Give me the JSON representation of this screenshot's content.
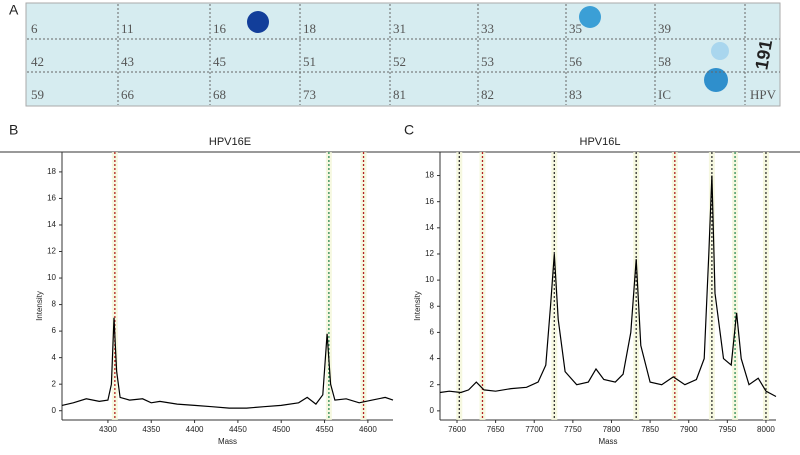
{
  "panels": [
    "A",
    "B",
    "C"
  ],
  "strip": {
    "rows": [
      [
        "6",
        "11",
        "16",
        "18",
        "31",
        "33",
        "35",
        "39"
      ],
      [
        "42",
        "43",
        "45",
        "51",
        "52",
        "53",
        "56",
        "58"
      ],
      [
        "59",
        "66",
        "68",
        "73",
        "81",
        "82",
        "83",
        "IC"
      ]
    ],
    "side": [
      "191",
      "HPV"
    ]
  },
  "chart_data": [
    {
      "type": "line",
      "title": "HPV16E",
      "x_label": "Mass",
      "y_label": "Intensity",
      "color": "#000000",
      "x": [
        4247,
        4260,
        4275,
        4290,
        4300,
        4304,
        4307,
        4310,
        4314,
        4325,
        4340,
        4350,
        4360,
        4380,
        4400,
        4420,
        4440,
        4460,
        4480,
        4500,
        4520,
        4530,
        4540,
        4548,
        4553,
        4557,
        4562,
        4575,
        4590,
        4605,
        4620,
        4629
      ],
      "values": [
        0.4,
        0.6,
        0.9,
        0.7,
        0.8,
        2,
        7,
        3,
        1,
        0.8,
        0.9,
        0.6,
        0.7,
        0.5,
        0.4,
        0.3,
        0.2,
        0.2,
        0.3,
        0.4,
        0.6,
        1,
        0.5,
        1.2,
        5.8,
        2,
        0.8,
        0.9,
        0.6,
        0.8,
        1,
        0.8
      ],
      "markers": [
        {
          "x": 4308,
          "color": "#b22222"
        },
        {
          "x": 4555,
          "color": "#2e8b57"
        },
        {
          "x": 4595,
          "color": "#b22222"
        }
      ],
      "xlim": [
        4247,
        4629
      ],
      "ylim": [
        -0.7,
        19.5
      ],
      "xticks": [
        4300,
        4350,
        4400,
        4450,
        4500,
        4550,
        4600
      ],
      "yticks": [
        0,
        2,
        4,
        6,
        8,
        10,
        12,
        14,
        16,
        18
      ]
    },
    {
      "type": "line",
      "title": "HPV16L",
      "x_label": "Mass",
      "y_label": "Intensity",
      "color": "#000000",
      "x": [
        7578,
        7590,
        7605,
        7615,
        7625,
        7635,
        7650,
        7670,
        7690,
        7705,
        7715,
        7721,
        7726,
        7731,
        7740,
        7755,
        7770,
        7780,
        7790,
        7805,
        7815,
        7825,
        7832,
        7838,
        7850,
        7865,
        7880,
        7895,
        7910,
        7920,
        7926,
        7930,
        7934,
        7945,
        7955,
        7962,
        7968,
        7978,
        7990,
        8000,
        8013
      ],
      "values": [
        1.4,
        1.5,
        1.4,
        1.6,
        2.2,
        1.6,
        1.5,
        1.7,
        1.8,
        2.2,
        3.5,
        8,
        12,
        7,
        3,
        2,
        2.2,
        3.2,
        2.4,
        2.2,
        2.8,
        6,
        11.6,
        5,
        2.2,
        2,
        2.6,
        2,
        2.4,
        4,
        12,
        18,
        9,
        4,
        3.5,
        7.5,
        4,
        2,
        2.5,
        1.5,
        1.1
      ],
      "markers": [
        {
          "x": 7603,
          "color": "#333333"
        },
        {
          "x": 7633,
          "color": "#b22222"
        },
        {
          "x": 7726,
          "color": "#333333"
        },
        {
          "x": 7832,
          "color": "#333333"
        },
        {
          "x": 7882,
          "color": "#b22222"
        },
        {
          "x": 7930,
          "color": "#333333"
        },
        {
          "x": 7960,
          "color": "#2e8b57"
        },
        {
          "x": 8000,
          "color": "#333333"
        }
      ],
      "xlim": [
        7578,
        8013
      ],
      "ylim": [
        -0.7,
        19.8
      ],
      "xticks": [
        7600,
        7650,
        7700,
        7750,
        7800,
        7850,
        7900,
        7950,
        8000
      ],
      "yticks": [
        0,
        2,
        4,
        6,
        8,
        10,
        12,
        14,
        16,
        18
      ]
    }
  ]
}
